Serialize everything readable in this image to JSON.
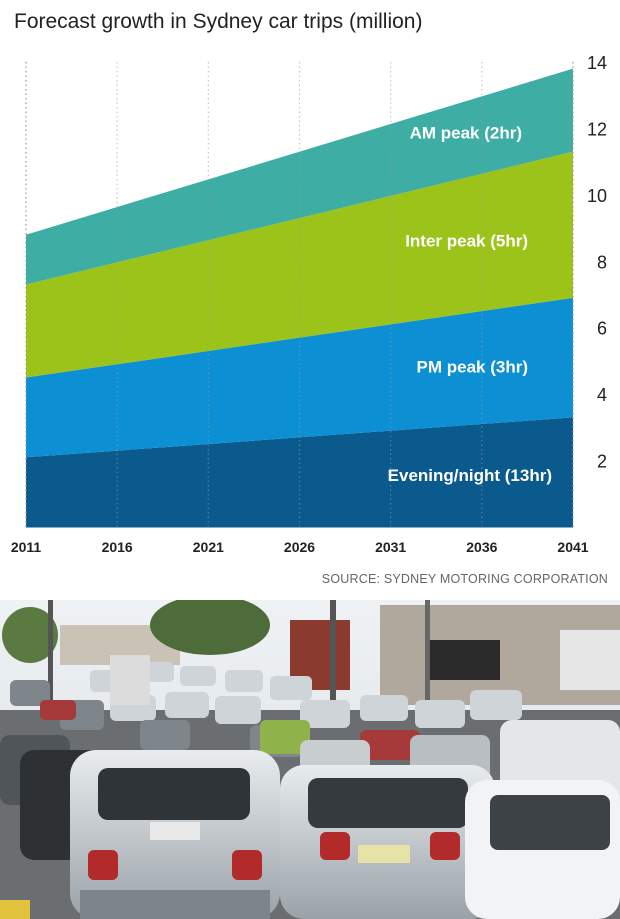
{
  "title": "Forecast growth in Sydney car trips (million)",
  "source": "SOURCE: SYDNEY MOTORING CORPORATION",
  "chart_data": {
    "type": "area",
    "stacked": true,
    "title": "Forecast growth in Sydney car trips (million)",
    "x": [
      2011,
      2041
    ],
    "x_ticks": [
      2011,
      2016,
      2021,
      2026,
      2031,
      2036,
      2041
    ],
    "y_ticks": [
      2,
      4,
      6,
      8,
      10,
      12,
      14
    ],
    "ylim": [
      0,
      14
    ],
    "y_axis_position": "right",
    "grid": "vertical dotted",
    "series": [
      {
        "name": "Evening/night (13hr)",
        "values": [
          2.1,
          3.3
        ],
        "color": "#0b5a8e"
      },
      {
        "name": "PM peak (3hr)",
        "values": [
          2.4,
          3.6
        ],
        "color": "#0d8fd3"
      },
      {
        "name": "Inter peak (5hr)",
        "values": [
          2.8,
          4.4
        ],
        "color": "#9bc319"
      },
      {
        "name": "AM peak (2hr)",
        "values": [
          1.5,
          2.5
        ],
        "color": "#3eaea4"
      }
    ]
  },
  "photo": {
    "icon": "traffic-jam-photo"
  }
}
